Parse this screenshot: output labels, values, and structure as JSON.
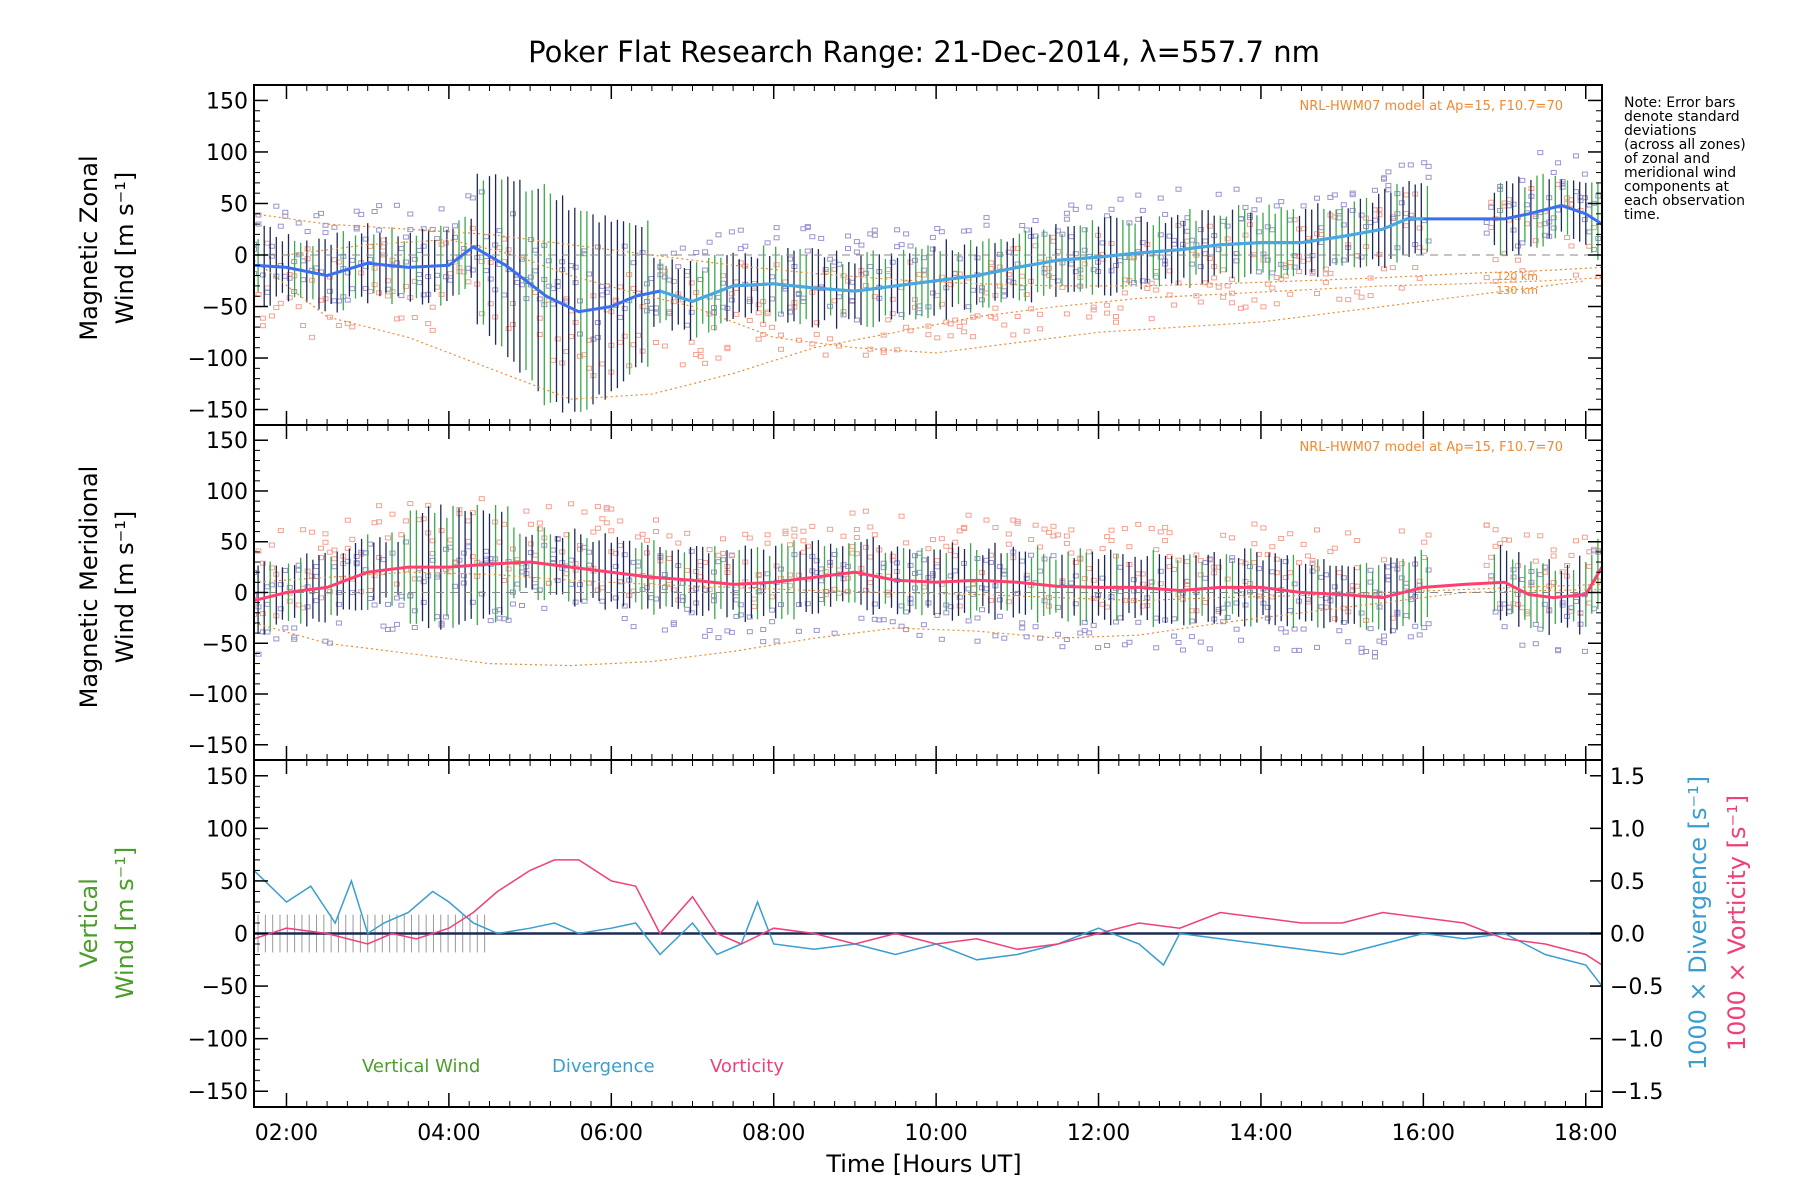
{
  "title": "Poker Flat Research Range: 21-Dec-2014, λ=557.7 nm",
  "note_lines": [
    "Note: Error bars",
    "denote standard",
    "deviations",
    "(across all zones)",
    "of zonal and",
    "meridional wind",
    "components at",
    "each observation",
    "time."
  ],
  "model_label": "NRL-HWM07 model at Ap=15, F10.7=70",
  "model_alt_labels": [
    "120 km",
    "130 km"
  ],
  "x_label_parts": [
    "Time ",
    "[",
    "Hours UT",
    "]"
  ],
  "x_ticks": [
    "02:00",
    "04:00",
    "06:00",
    "08:00",
    "10:00",
    "12:00",
    "14:00",
    "16:00",
    "18:00"
  ],
  "y_ticks": [
    "150",
    "100",
    "50",
    "0",
    "−50",
    "−100",
    "−150"
  ],
  "right_ticks": [
    "1.5",
    "1.0",
    "0.5",
    "0.0",
    "−0.5",
    "−1.0",
    "−1.5"
  ],
  "panels": {
    "zonal": {
      "label_line1": "Magnetic Zonal",
      "label_line2": "Wind",
      "unit": "[m s⁻¹]"
    },
    "meridional": {
      "label_line1": "Magnetic Meridional",
      "label_line2": "Wind",
      "unit": "[m s⁻¹]"
    },
    "vertical": {
      "label_line1": "Vertical",
      "label_line2": "Wind",
      "unit": "[m s⁻¹]"
    }
  },
  "right_labels": {
    "divergence": "1000 × Divergence [s⁻¹]",
    "vorticity": "1000 × Vorticity [s⁻¹]"
  },
  "legend": {
    "vertical": "Vertical Wind",
    "divergence": "Divergence",
    "vorticity": "Vorticity"
  },
  "colors": {
    "zonal_mean": "#3a6ff0",
    "zonal_mean_light": "#4aa8e0",
    "meridional_mean": "#ff3f6f",
    "model": "#f08a30",
    "errbar_dark": "#1d2a55",
    "errbar_green": "#3aa84a",
    "scatter_blue": "#9a94cf",
    "scatter_red": "#f4a090",
    "vertical": "#4a9e2a",
    "divergence": "#3a9ed0",
    "vorticity": "#f0407a"
  },
  "chart_data": [
    {
      "type": "line",
      "title": "Poker Flat Research Range: 21-Dec-2014, λ=557.7 nm",
      "ylabel": "Magnetic Zonal Wind [m s⁻¹]",
      "xlabel": "Time [Hours UT]",
      "xlim": [
        1.6,
        18.2
      ],
      "ylim": [
        -165,
        165
      ],
      "series": [
        {
          "x": [
            1.6,
            2.0,
            2.5,
            3.0,
            3.5,
            4.0,
            4.3,
            4.7,
            5.2,
            5.6,
            6.0,
            6.3,
            6.6,
            7.0,
            7.5,
            8.0,
            8.5,
            9.0,
            9.5,
            10.0,
            10.5,
            11.0,
            11.5,
            12.0,
            12.5,
            13.0,
            13.5,
            14.0,
            14.5,
            15.0,
            15.5,
            15.8,
            16.0,
            16.5,
            17.0,
            17.3,
            17.7,
            18.0,
            18.2
          ],
          "y": [
            -10,
            -12,
            -20,
            -8,
            -12,
            -10,
            8,
            -10,
            -40,
            -55,
            -50,
            -40,
            -35,
            -45,
            -30,
            -28,
            -32,
            -35,
            -30,
            -25,
            -20,
            -12,
            -5,
            -2,
            2,
            5,
            10,
            12,
            12,
            18,
            25,
            35,
            35,
            35,
            35,
            40,
            48,
            40,
            30
          ]
        },
        {
          "x": [
            2.0,
            3.0,
            4.0,
            4.8,
            5.5,
            6.2,
            7.0,
            8.0,
            9.0,
            10.0,
            11.0,
            12.0,
            13.0,
            14.0,
            15.0,
            16.0,
            17.0,
            18.0
          ],
          "y": [
            0,
            10,
            15,
            0,
            -20,
            -35,
            -50,
            -80,
            -90,
            -95,
            -85,
            -75,
            -70,
            -65,
            -55,
            -45,
            -35,
            -25
          ]
        },
        {
          "x": [
            1.6,
            2.5,
            3.5,
            4.5,
            5.5,
            6.5,
            7.5,
            8.5,
            9.5,
            10.5,
            11.5,
            12.5,
            13.5,
            14.5,
            15.5,
            16.5,
            17.5,
            18.2
          ],
          "y": [
            -5,
            -60,
            -80,
            -110,
            -140,
            -135,
            -115,
            -90,
            -75,
            -60,
            -50,
            -42,
            -38,
            -34,
            -30,
            -28,
            -25,
            -22
          ]
        },
        {
          "x": [
            1.6,
            2.5,
            3.5,
            4.5,
            5.5,
            6.5,
            7.5,
            8.5,
            9.5,
            10.5,
            11.5,
            12.5,
            13.5,
            14.5,
            15.5,
            16.5,
            17.5,
            18.2
          ],
          "y": [
            40,
            30,
            25,
            20,
            10,
            0,
            -10,
            -18,
            -24,
            -28,
            -30,
            -30,
            -28,
            -25,
            -22,
            -18,
            -15,
            -12
          ]
        }
      ]
    },
    {
      "type": "line",
      "ylabel": "Magnetic Meridional Wind [m s⁻¹]",
      "xlim": [
        1.6,
        18.2
      ],
      "ylim": [
        -165,
        165
      ],
      "series": [
        {
          "x": [
            1.6,
            2.0,
            2.5,
            3.0,
            3.5,
            4.0,
            4.5,
            5.0,
            5.5,
            6.0,
            6.5,
            7.0,
            7.5,
            8.0,
            8.5,
            9.0,
            9.5,
            10.0,
            10.5,
            11.0,
            11.5,
            12.0,
            12.5,
            13.0,
            13.5,
            14.0,
            14.5,
            15.0,
            15.5,
            16.0,
            16.5,
            17.0,
            17.3,
            17.6,
            18.0,
            18.2
          ],
          "y": [
            -8,
            0,
            5,
            20,
            25,
            25,
            28,
            30,
            25,
            20,
            15,
            12,
            8,
            10,
            15,
            20,
            12,
            10,
            12,
            10,
            6,
            5,
            5,
            2,
            5,
            5,
            0,
            -2,
            -5,
            5,
            8,
            10,
            -2,
            -5,
            -2,
            25
          ]
        },
        {
          "x": [
            1.6,
            2.5,
            3.5,
            4.5,
            5.5,
            6.5,
            7.5,
            8.5,
            9.5,
            10.5,
            11.5,
            12.5,
            13.5,
            14.5,
            15.5,
            16.5,
            17.5,
            18.2
          ],
          "y": [
            -30,
            -50,
            -60,
            -70,
            -72,
            -68,
            -58,
            -45,
            -35,
            -38,
            -45,
            -42,
            -30,
            -20,
            -10,
            0,
            2,
            3
          ]
        },
        {
          "x": [
            1.6,
            2.5,
            3.5,
            4.5,
            5.5,
            6.5,
            7.5,
            8.5,
            9.5,
            10.5,
            11.5,
            12.5,
            13.5,
            14.5,
            15.5,
            16.5,
            17.5,
            18.2
          ],
          "y": [
            10,
            15,
            20,
            18,
            12,
            8,
            5,
            2,
            0,
            -2,
            -5,
            -8,
            -5,
            -3,
            0,
            3,
            6,
            8
          ]
        }
      ]
    },
    {
      "type": "line",
      "ylabel": "Vertical Wind [m s⁻¹]",
      "ylabel_right": "1000 × Divergence / Vorticity [s⁻¹]",
      "xlim": [
        1.6,
        18.2
      ],
      "ylim": [
        -165,
        165
      ],
      "ylim_right": [
        -1.65,
        1.65
      ],
      "series": [
        {
          "name": "Vertical Wind",
          "x": [
            1.6,
            18.2
          ],
          "y": [
            0,
            0
          ]
        },
        {
          "name": "Divergence",
          "x": [
            1.6,
            2.0,
            2.3,
            2.6,
            2.8,
            3.0,
            3.2,
            3.5,
            3.8,
            4.0,
            4.3,
            4.6,
            5.0,
            5.3,
            5.6,
            6.0,
            6.3,
            6.6,
            7.0,
            7.3,
            7.6,
            7.8,
            8.0,
            8.5,
            9.0,
            9.5,
            10.0,
            10.5,
            11.0,
            11.5,
            12.0,
            12.5,
            12.8,
            13.0,
            13.5,
            14.0,
            14.5,
            15.0,
            15.5,
            16.0,
            16.5,
            17.0,
            17.5,
            18.0,
            18.2
          ],
          "y": [
            0.6,
            0.3,
            0.45,
            0.1,
            0.5,
            0.0,
            0.1,
            0.2,
            0.4,
            0.3,
            0.1,
            0.0,
            0.05,
            0.1,
            0.0,
            0.05,
            0.1,
            -0.2,
            0.1,
            -0.2,
            -0.1,
            0.3,
            -0.1,
            -0.15,
            -0.1,
            -0.2,
            -0.1,
            -0.25,
            -0.2,
            -0.1,
            0.05,
            -0.1,
            -0.3,
            0.0,
            -0.05,
            -0.1,
            -0.15,
            -0.2,
            -0.1,
            0.0,
            -0.05,
            0.0,
            -0.2,
            -0.3,
            -0.5
          ]
        },
        {
          "name": "Vorticity",
          "x": [
            1.6,
            2.0,
            2.5,
            3.0,
            3.3,
            3.6,
            4.0,
            4.3,
            4.6,
            5.0,
            5.3,
            5.6,
            6.0,
            6.3,
            6.6,
            7.0,
            7.3,
            7.6,
            8.0,
            8.5,
            9.0,
            9.5,
            10.0,
            10.5,
            11.0,
            11.5,
            12.0,
            12.5,
            13.0,
            13.5,
            14.0,
            14.5,
            15.0,
            15.5,
            16.0,
            16.5,
            17.0,
            17.5,
            18.0,
            18.2
          ],
          "y": [
            -0.05,
            0.05,
            0.0,
            -0.1,
            0.0,
            -0.05,
            0.05,
            0.2,
            0.4,
            0.6,
            0.7,
            0.7,
            0.5,
            0.45,
            0.0,
            0.35,
            0.0,
            -0.1,
            0.05,
            0.0,
            -0.1,
            0.0,
            -0.1,
            -0.05,
            -0.15,
            -0.1,
            0.0,
            0.1,
            0.05,
            0.2,
            0.15,
            0.1,
            0.1,
            0.2,
            0.15,
            0.1,
            -0.05,
            -0.1,
            -0.2,
            -0.3
          ]
        }
      ]
    }
  ]
}
